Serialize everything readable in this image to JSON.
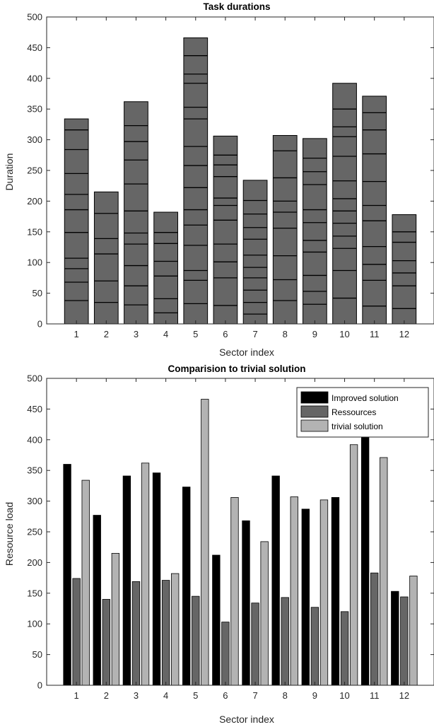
{
  "chart_data": [
    {
      "type": "bar",
      "stacked": true,
      "title": "Task durations",
      "xlabel": "Sector index",
      "ylabel": "Duration",
      "categories": [
        "1",
        "2",
        "3",
        "4",
        "5",
        "6",
        "7",
        "8",
        "9",
        "10",
        "11",
        "12"
      ],
      "ylim": [
        0,
        500
      ],
      "yticks": [
        0,
        50,
        100,
        150,
        200,
        250,
        300,
        350,
        400,
        450,
        500
      ],
      "bar_color": "#666666",
      "segment_line_color": "#000000",
      "totals": [
        334,
        215,
        362,
        182,
        466,
        306,
        234,
        307,
        302,
        392,
        371,
        178
      ],
      "segment_boundaries": [
        [
          38,
          68,
          90,
          107,
          149,
          186,
          211,
          245,
          284,
          316
        ],
        [
          35,
          70,
          114,
          139,
          180
        ],
        [
          31,
          62,
          95,
          130,
          148,
          184,
          228,
          267,
          297,
          323
        ],
        [
          18,
          41,
          78,
          102,
          131,
          149
        ],
        [
          33,
          71,
          87,
          128,
          161,
          186,
          222,
          258,
          289,
          334,
          353,
          392,
          407,
          437
        ],
        [
          30,
          75,
          101,
          130,
          169,
          193,
          205,
          240,
          259,
          275
        ],
        [
          16,
          35,
          55,
          75,
          92,
          112,
          138,
          157,
          179,
          201
        ],
        [
          38,
          72,
          111,
          156,
          182,
          200,
          238,
          282
        ],
        [
          32,
          53,
          79,
          117,
          136,
          165,
          186,
          227,
          248,
          270
        ],
        [
          42,
          87,
          123,
          143,
          164,
          184,
          204,
          233,
          273,
          305,
          321,
          350
        ],
        [
          29,
          71,
          97,
          126,
          168,
          193,
          232,
          277,
          316,
          344
        ],
        [
          25,
          62,
          83,
          103,
          133,
          150
        ]
      ]
    },
    {
      "type": "bar",
      "title": "Comparision to trivial solution",
      "xlabel": "Sector index",
      "ylabel": "Resource load",
      "categories": [
        "1",
        "2",
        "3",
        "4",
        "5",
        "6",
        "7",
        "8",
        "9",
        "10",
        "11",
        "12"
      ],
      "ylim": [
        0,
        500
      ],
      "yticks": [
        0,
        50,
        100,
        150,
        200,
        250,
        300,
        350,
        400,
        450,
        500
      ],
      "legend": "top-right",
      "series": [
        {
          "name": "Improved solution",
          "color": "#000000",
          "values": [
            360,
            277,
            341,
            346,
            323,
            212,
            268,
            341,
            287,
            306,
            412,
            153
          ]
        },
        {
          "name": "Ressources",
          "color": "#666666",
          "values": [
            174,
            140,
            169,
            171,
            145,
            103,
            134,
            143,
            127,
            120,
            183,
            144
          ]
        },
        {
          "name": "trivial solution",
          "color": "#b3b3b3",
          "values": [
            334,
            215,
            362,
            182,
            466,
            306,
            234,
            307,
            302,
            392,
            371,
            178
          ]
        }
      ]
    }
  ]
}
